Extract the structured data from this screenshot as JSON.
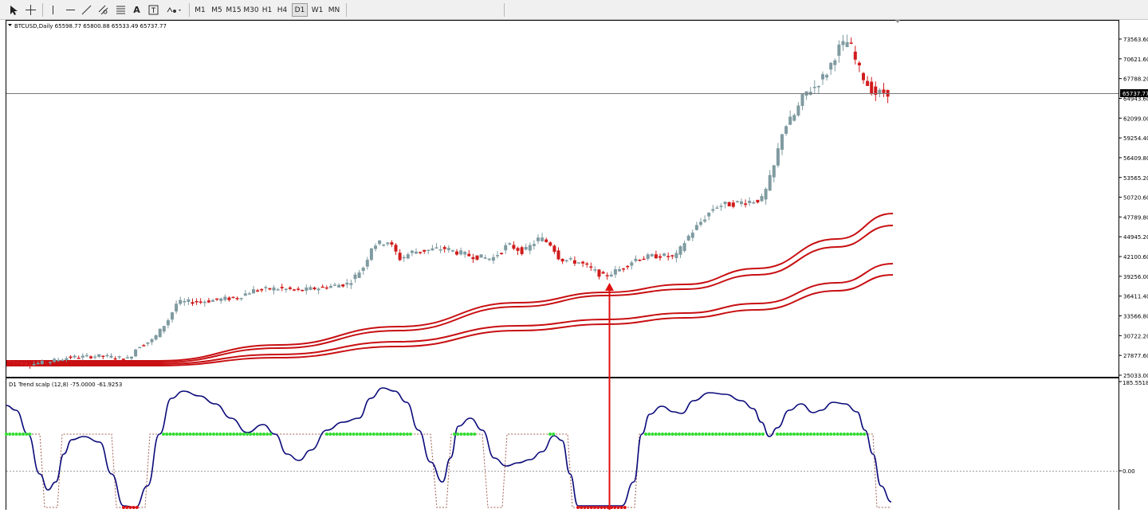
{
  "toolbar": {
    "tools": [
      {
        "name": "cursor-tool-button",
        "icon": "arrow-cursor-icon"
      },
      {
        "name": "crosshair-tool-button",
        "icon": "crosshair-icon"
      },
      {
        "name": "vertical-line-button",
        "icon": "vertical-line-icon"
      },
      {
        "name": "horizontal-line-button",
        "icon": "horizontal-line-icon"
      },
      {
        "name": "trendline-button",
        "icon": "trendline-icon"
      },
      {
        "name": "channel-button",
        "icon": "channel-icon"
      },
      {
        "name": "fibonacci-button",
        "icon": "fibonacci-icon"
      },
      {
        "name": "text-button",
        "icon": "text-A-icon"
      },
      {
        "name": "text-label-button",
        "icon": "text-label-icon"
      },
      {
        "name": "shapes-menu-button",
        "icon": "shapes-dropdown-icon"
      }
    ],
    "timeframes": [
      "M1",
      "M5",
      "M15",
      "M30",
      "H1",
      "H4",
      "D1",
      "W1",
      "MN"
    ],
    "active_timeframe": "D1"
  },
  "main_chart": {
    "info": "BTCUSD,Daily  65598.77 65800.88 65533.49 65737.77",
    "current_price": "65737.77",
    "price_labels": [
      "73563.60",
      "70621.60",
      "67788.20",
      "64943.60",
      "62099.00",
      "59254.40",
      "56409.80",
      "53565.20",
      "50720.60",
      "47789.80",
      "44945.20",
      "42100.60",
      "39256.00",
      "36411.40",
      "33566.80",
      "30722.20",
      "27877.60",
      "25033.00"
    ],
    "y_range": [
      25033,
      76500
    ]
  },
  "indicator": {
    "info": "D1 Trend scalp (12,8) -75.0000 -61.9253",
    "scale_labels": [
      "185.5518",
      "0.00"
    ]
  },
  "colors": {
    "bull_candle": "#7f9ba1",
    "bear_candle": "#d11b1b",
    "ma_line": "#c80f12",
    "oscillator": "#0a0a7a",
    "signal_dots_up": "#33dd33",
    "signal_dots_down": "#e01010",
    "arrow": "#e01010"
  }
}
